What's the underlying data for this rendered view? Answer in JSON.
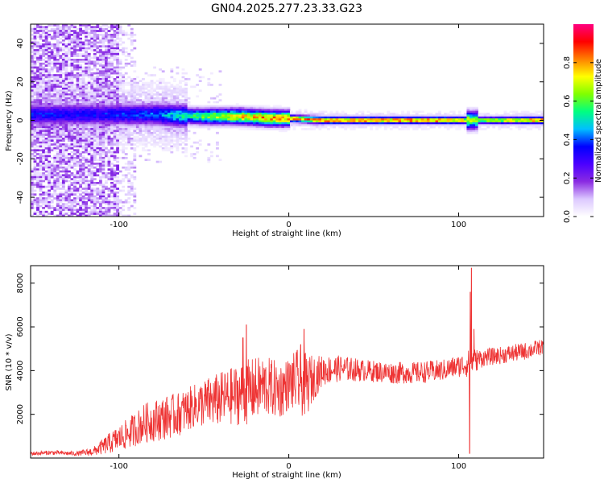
{
  "title": "GN04.2025.277.23.33.G23",
  "chart_data": [
    {
      "type": "heatmap",
      "title": "GN04.2025.277.23.33.G23",
      "xlabel": "Height of straight line (km)",
      "ylabel": "Frequency (Hz)",
      "xlim": [
        -152,
        150
      ],
      "ylim": [
        -50,
        50
      ],
      "xticks": [
        -100,
        0,
        100
      ],
      "xtick_labels": [
        "-100",
        "0",
        "100"
      ],
      "yticks": [
        -40,
        -20,
        0,
        20,
        40
      ],
      "ytick_labels": [
        "-40",
        "-20",
        "0",
        "20",
        "40"
      ],
      "colorbar": {
        "label": "Normalized spectral amplitude",
        "range": [
          0,
          1
        ],
        "ticks": [
          0.0,
          0.2,
          0.4,
          0.6,
          0.8
        ],
        "tick_labels": [
          "0.0",
          "0.2",
          "0.4",
          "0.6",
          "0.8"
        ],
        "colormap": [
          "#ffffff",
          "#dcc8ff",
          "#8a2be2",
          "#4b00ff",
          "#0000ff",
          "#00bfff",
          "#00ff80",
          "#80ff00",
          "#ffff00",
          "#ff8000",
          "#ff0000",
          "#ff0080"
        ]
      },
      "ridge": {
        "x": [
          -110,
          -80,
          -50,
          -30,
          -10,
          0,
          20,
          60,
          100,
          108,
          150
        ],
        "center_hz": [
          3,
          3,
          2,
          2,
          1,
          1,
          0,
          0,
          0,
          0,
          0
        ],
        "peak_amplitude": [
          0.4,
          0.45,
          0.7,
          0.85,
          0.9,
          0.9,
          0.95,
          0.95,
          0.95,
          0.7,
          0.95
        ]
      }
    },
    {
      "type": "line",
      "xlabel": "Height of straight line (km)",
      "ylabel": "SNR (10 * v/v)",
      "xlim": [
        -152,
        150
      ],
      "ylim": [
        0,
        8800
      ],
      "xticks": [
        -100,
        0,
        100
      ],
      "xtick_labels": [
        "-100",
        "0",
        "100"
      ],
      "yticks": [
        2000,
        4000,
        6000,
        8000
      ],
      "ytick_labels": [
        "2000",
        "4000",
        "6000",
        "8000"
      ],
      "series": [
        {
          "name": "SNR",
          "color": "#ee3333",
          "x": [
            -152,
            -140,
            -125,
            -115,
            -105,
            -95,
            -85,
            -75,
            -65,
            -55,
            -45,
            -35,
            -25,
            -15,
            -5,
            0,
            5,
            10,
            15,
            20,
            30,
            45,
            60,
            75,
            90,
            100,
            105,
            108,
            111,
            115,
            125,
            140,
            150
          ],
          "y": [
            200,
            250,
            200,
            300,
            700,
            1100,
            1600,
            1800,
            2000,
            2400,
            2600,
            2800,
            3000,
            3300,
            3100,
            3400,
            3500,
            3300,
            3700,
            4000,
            4100,
            4000,
            3900,
            3900,
            4000,
            4200,
            4300,
            4400,
            4500,
            4600,
            4700,
            4900,
            5100
          ],
          "noise_amplitude": [
            100,
            100,
            100,
            200,
            500,
            700,
            900,
            1000,
            1000,
            1000,
            1200,
            1300,
            1500,
            1400,
            1300,
            1200,
            1500,
            1500,
            1000,
            700,
            600,
            500,
            500,
            500,
            500,
            500,
            600,
            700,
            500,
            400,
            400,
            400,
            350
          ],
          "spikes": [
            {
              "x": -25,
              "y": 6100
            },
            {
              "x": -27,
              "y": 5500
            },
            {
              "x": 9,
              "y": 5900
            },
            {
              "x": 7,
              "y": 5200
            },
            {
              "x": 107.5,
              "y": 8700
            },
            {
              "x": 106.8,
              "y": 7600
            },
            {
              "x": 106.5,
              "y": 200
            },
            {
              "x": 109,
              "y": 5900
            },
            {
              "x": 110,
              "y": 4800
            }
          ]
        }
      ]
    }
  ]
}
